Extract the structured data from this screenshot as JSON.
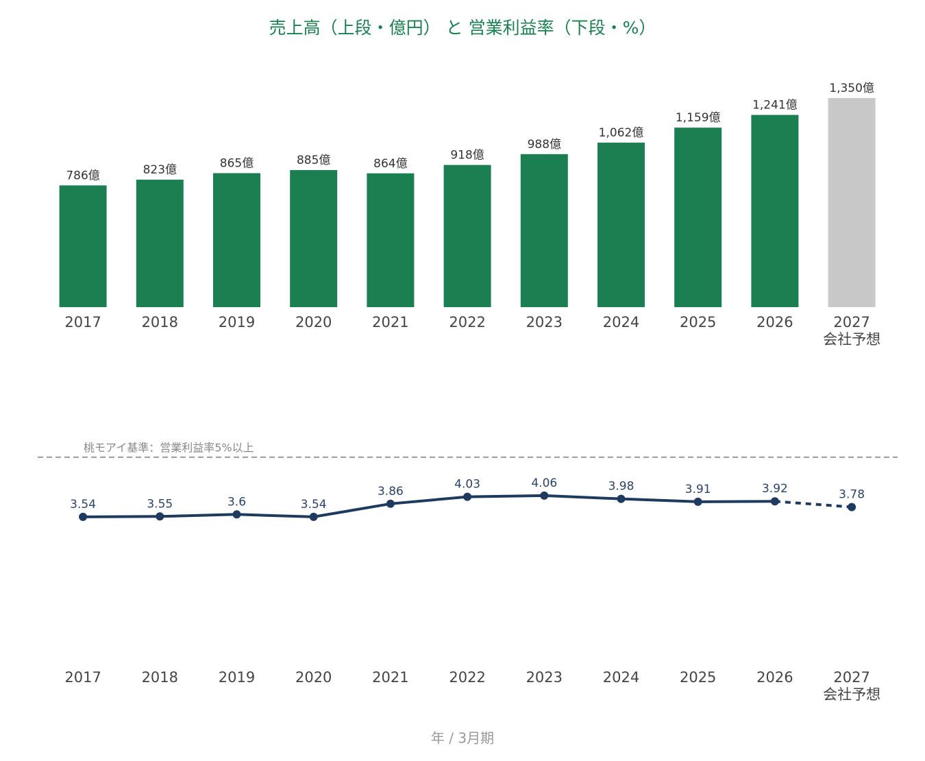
{
  "chart_data": [
    {
      "type": "bar",
      "title": "売上高（上段・億円） と 営業利益率（下段・%）",
      "categories": [
        "2017",
        "2018",
        "2019",
        "2020",
        "2021",
        "2022",
        "2023",
        "2024",
        "2025",
        "2026",
        "2027\n会社予想"
      ],
      "values": [
        786,
        823,
        865,
        885,
        864,
        918,
        988,
        1062,
        1159,
        1241,
        1350
      ],
      "value_labels": [
        "786億",
        "823億",
        "865億",
        "885億",
        "864億",
        "918億",
        "988億",
        "1,062億",
        "1,159億",
        "1,241億",
        "1,350億"
      ],
      "colors": [
        "#1b7f52",
        "#1b7f52",
        "#1b7f52",
        "#1b7f52",
        "#1b7f52",
        "#1b7f52",
        "#1b7f52",
        "#1b7f52",
        "#1b7f52",
        "#1b7f52",
        "#c8c8c8"
      ],
      "ylim": [
        0,
        1400
      ]
    },
    {
      "type": "line",
      "x_label": "年 / 3月期",
      "categories": [
        "2017",
        "2018",
        "2019",
        "2020",
        "2021",
        "2022",
        "2023",
        "2024",
        "2025",
        "2026",
        "2027\n会社予想"
      ],
      "series": [
        {
          "name": "営業利益率",
          "color": "#1f3a5f",
          "values": [
            3.54,
            3.55,
            3.6,
            3.54,
            3.86,
            4.03,
            4.06,
            3.98,
            3.91,
            3.92,
            3.78
          ]
        }
      ],
      "dashed_from_index": 9,
      "reference_line": {
        "value": 5,
        "label": "桃モアイ基準：営業利益率5%以上"
      },
      "ylim": [
        0,
        5.5
      ]
    }
  ]
}
